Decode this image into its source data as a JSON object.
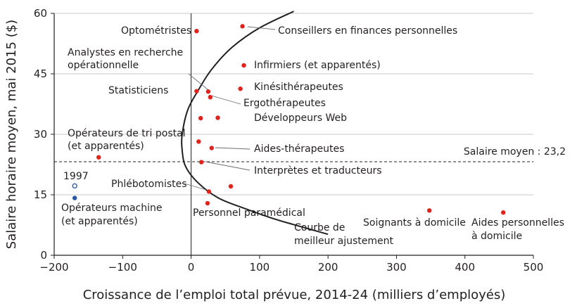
{
  "chart_data": {
    "type": "scatter",
    "xlabel": "Croissance de l’emploi total prévue, 2014-24 (milliers d’employés)",
    "ylabel": "Salaire horaire moyen, mai 2015 ($)",
    "xlim": [
      -200,
      500
    ],
    "ylim": [
      0,
      60
    ],
    "xticks": [
      -200,
      -100,
      0,
      100,
      200,
      300,
      400,
      500
    ],
    "yticks": [
      0,
      15,
      30,
      45,
      60
    ],
    "xtick_labels": [
      "−200",
      "−100",
      "0",
      "100",
      "200",
      "300",
      "400",
      "500"
    ],
    "ytick_labels": [
      "0",
      "15",
      "30",
      "45",
      "60"
    ],
    "grid": "horizontal",
    "colors": {
      "points": "#e0231c",
      "hollow": "#2a55a6",
      "grid": "#c8c8c8",
      "axis": "#231f20"
    },
    "points": [
      {
        "x": 8,
        "y": 55.6
      },
      {
        "x": 75,
        "y": 56.8
      },
      {
        "x": 77,
        "y": 47.1
      },
      {
        "x": 72,
        "y": 41.3
      },
      {
        "x": 25,
        "y": 40.6
      },
      {
        "x": 8,
        "y": 40.7
      },
      {
        "x": 28,
        "y": 39.2
      },
      {
        "x": 39,
        "y": 34.1
      },
      {
        "x": 14,
        "y": 34.0
      },
      {
        "x": 11,
        "y": 28.2
      },
      {
        "x": 30,
        "y": 26.6
      },
      {
        "x": -135,
        "y": 24.3
      },
      {
        "x": 15,
        "y": 23.1
      },
      {
        "x": 58,
        "y": 17.1
      },
      {
        "x": 26,
        "y": 15.8
      },
      {
        "x": 24,
        "y": 12.9
      },
      {
        "x": 348,
        "y": 11.1
      },
      {
        "x": 456,
        "y": 10.6
      },
      {
        "x": -170,
        "y": 14.2
      }
    ],
    "hollow_points": [
      {
        "x": -170,
        "y": 17.2
      }
    ],
    "average_wage": {
      "value": 23.2,
      "label": "Salaire moyen : 23,2"
    },
    "fit_curve": {
      "label_line1": "Courbe de",
      "label_line2": "meilleur ajustement",
      "points": [
        [
          150,
          60.5
        ],
        [
          100,
          56.4
        ],
        [
          60,
          51.6
        ],
        [
          30,
          46.1
        ],
        [
          10,
          40.8
        ],
        [
          -5,
          36
        ],
        [
          -13,
          30
        ],
        [
          -13,
          26
        ],
        [
          -8,
          22
        ],
        [
          10,
          18
        ],
        [
          40,
          14.2
        ],
        [
          80,
          11.5
        ],
        [
          120,
          9.1
        ],
        [
          150,
          7.6
        ],
        [
          200,
          5.2
        ]
      ]
    },
    "annotations": [
      {
        "text": "Optométristes"
      },
      {
        "text": "Conseillers en finances personnelles"
      },
      {
        "text": "Analystes en recherche"
      },
      {
        "text": "opérationnelle"
      },
      {
        "text": "Infirmiers (et apparentés)"
      },
      {
        "text": "Statisticiens"
      },
      {
        "text": "Kinésithérapeutes"
      },
      {
        "text": "Ergothérapeutes"
      },
      {
        "text": "Développeurs Web"
      },
      {
        "text": "Opérateurs de tri postal"
      },
      {
        "text": "(et apparentés)"
      },
      {
        "text": "Aides-thérapeutes"
      },
      {
        "text": "Interprètes et traducteurs"
      },
      {
        "text": "1997"
      },
      {
        "text": "Phlébotomistes"
      },
      {
        "text": "Opérateurs machine"
      },
      {
        "text": "(et apparentés)"
      },
      {
        "text": "Personnel paramédical"
      },
      {
        "text": "Soignants à domicile"
      },
      {
        "text": "Aides personnelles"
      },
      {
        "text": "à domicile"
      }
    ]
  }
}
